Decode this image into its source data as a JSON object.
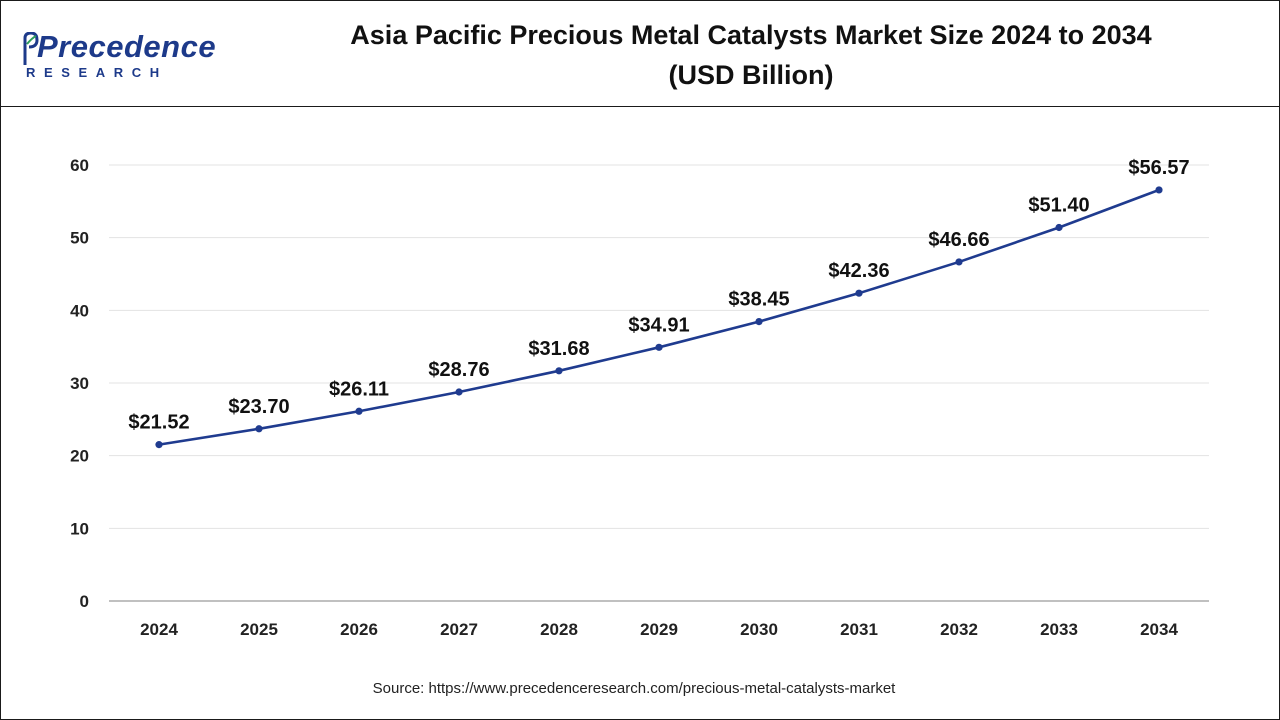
{
  "brand": {
    "name": "Precedence",
    "sub": "RESEARCH",
    "color": "#1d3a8a"
  },
  "header": {
    "title_line1": "Asia Pacific Precious Metal Catalysts Market Size 2024 to 2034",
    "title_line2": "(USD Billion)"
  },
  "footer": {
    "source": "Source: https://www.precedenceresearch.com/precious-metal-catalysts-market"
  },
  "chart_data": {
    "type": "line",
    "title": "Asia Pacific Precious Metal Catalysts Market Size 2024 to 2034 (USD Billion)",
    "xlabel": "",
    "ylabel": "",
    "categories": [
      "2024",
      "2025",
      "2026",
      "2027",
      "2028",
      "2029",
      "2030",
      "2031",
      "2032",
      "2033",
      "2034"
    ],
    "series": [
      {
        "name": "Market Size",
        "values": [
          21.52,
          23.7,
          26.11,
          28.76,
          31.68,
          34.91,
          38.45,
          42.36,
          46.66,
          51.4,
          56.57
        ],
        "labels": [
          "$21.52",
          "$23.70",
          "$26.11",
          "$28.76",
          "$31.68",
          "$34.91",
          "$38.45",
          "$42.36",
          "$46.66",
          "$51.40",
          "$56.57"
        ],
        "color": "#1f3b8f"
      }
    ],
    "ylim": [
      0,
      60
    ],
    "yticks": [
      0,
      10,
      20,
      30,
      40,
      50,
      60
    ],
    "grid": true,
    "legend": "none"
  }
}
